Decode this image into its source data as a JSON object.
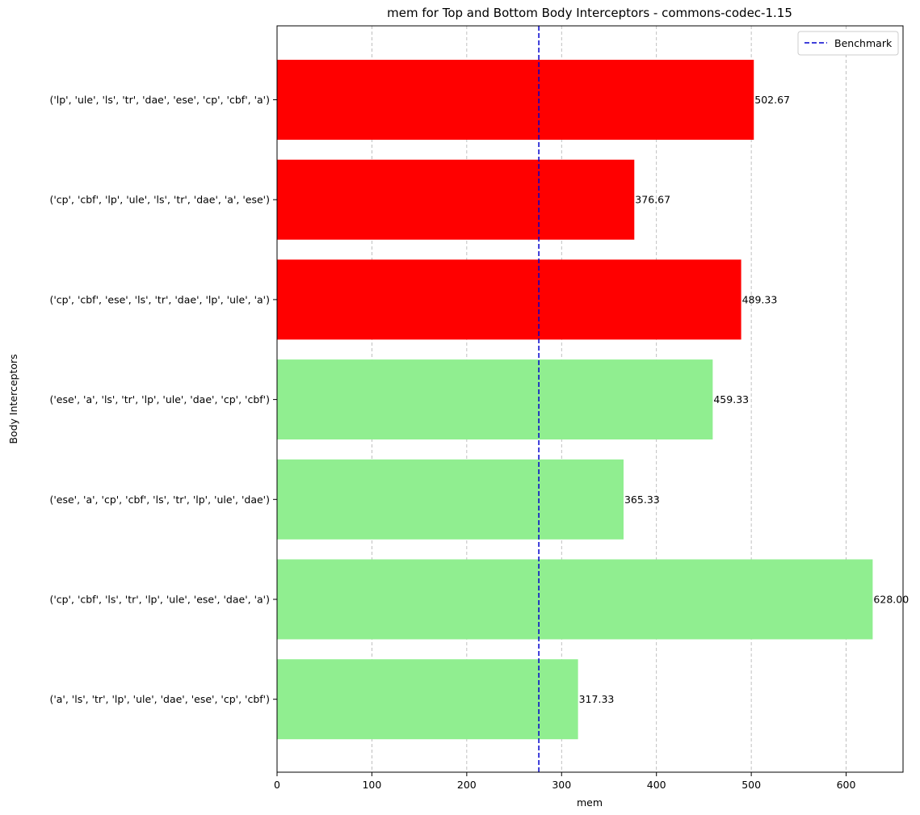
{
  "chart_data": {
    "type": "bar",
    "orientation": "horizontal",
    "title": "mem for Top and Bottom Body Interceptors - commons-codec-1.15",
    "xlabel": "mem",
    "ylabel": "Body Interceptors",
    "xlim": [
      0,
      660
    ],
    "xticks": [
      0,
      100,
      200,
      300,
      400,
      500,
      600
    ],
    "grid": "vertical dashed",
    "categories": [
      "('lp', 'ule', 'ls', 'tr', 'dae', 'ese', 'cp', 'cbf', 'a')",
      "('cp', 'cbf', 'lp', 'ule', 'ls', 'tr', 'dae', 'a', 'ese')",
      "('cp', 'cbf', 'ese', 'ls', 'tr', 'dae', 'lp', 'ule', 'a')",
      "('ese', 'a', 'ls', 'tr', 'lp', 'ule', 'dae', 'cp', 'cbf')",
      "('ese', 'a', 'cp', 'cbf', 'ls', 'tr', 'lp', 'ule', 'dae')",
      "('cp', 'cbf', 'ls', 'tr', 'lp', 'ule', 'ese', 'dae', 'a')",
      "('a', 'ls', 'tr', 'lp', 'ule', 'dae', 'ese', 'cp', 'cbf')"
    ],
    "values": [
      502.67,
      376.67,
      489.33,
      459.33,
      365.33,
      628.0,
      317.33
    ],
    "value_labels": [
      "502.67",
      "376.67",
      "489.33",
      "459.33",
      "365.33",
      "628.00",
      "317.33"
    ],
    "bar_colors": [
      "#ff0000",
      "#ff0000",
      "#ff0000",
      "#90ee90",
      "#90ee90",
      "#90ee90",
      "#90ee90"
    ],
    "benchmark": {
      "label": "Benchmark",
      "value": 276,
      "color": "#0000cd"
    },
    "legend_position": "top-right"
  }
}
